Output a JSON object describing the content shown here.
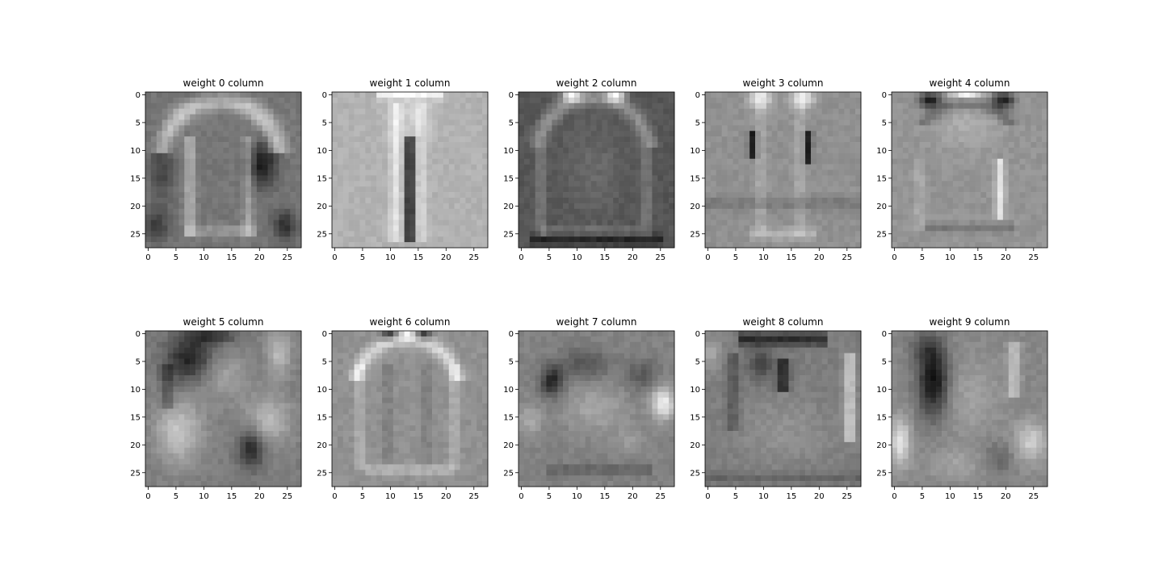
{
  "chart_data": [
    {
      "type": "heatmap",
      "title": "weight 0 column",
      "pattern": "tshirt",
      "colormap": "gray",
      "xlim": [
        0,
        27
      ],
      "ylim": [
        27,
        0
      ],
      "xticks": [
        "0",
        "5",
        "10",
        "15",
        "20",
        "25"
      ],
      "yticks": [
        "0",
        "5",
        "10",
        "15",
        "20",
        "25"
      ]
    },
    {
      "type": "heatmap",
      "title": "weight 1 column",
      "pattern": "trouser",
      "colormap": "gray",
      "xlim": [
        0,
        27
      ],
      "ylim": [
        27,
        0
      ],
      "xticks": [
        "0",
        "5",
        "10",
        "15",
        "20",
        "25"
      ],
      "yticks": [
        "0",
        "5",
        "10",
        "15",
        "20",
        "25"
      ]
    },
    {
      "type": "heatmap",
      "title": "weight 2 column",
      "pattern": "pullover",
      "colormap": "gray",
      "xlim": [
        0,
        27
      ],
      "ylim": [
        27,
        0
      ],
      "xticks": [
        "0",
        "5",
        "10",
        "15",
        "20",
        "25"
      ],
      "yticks": [
        "0",
        "5",
        "10",
        "15",
        "20",
        "25"
      ]
    },
    {
      "type": "heatmap",
      "title": "weight 3 column",
      "pattern": "dress",
      "colormap": "gray",
      "xlim": [
        0,
        27
      ],
      "ylim": [
        27,
        0
      ],
      "xticks": [
        "0",
        "5",
        "10",
        "15",
        "20",
        "25"
      ],
      "yticks": [
        "0",
        "5",
        "10",
        "15",
        "20",
        "25"
      ]
    },
    {
      "type": "heatmap",
      "title": "weight 4 column",
      "pattern": "coat",
      "colormap": "gray",
      "xlim": [
        0,
        27
      ],
      "ylim": [
        27,
        0
      ],
      "xticks": [
        "0",
        "5",
        "10",
        "15",
        "20",
        "25"
      ],
      "yticks": [
        "0",
        "5",
        "10",
        "15",
        "20",
        "25"
      ]
    },
    {
      "type": "heatmap",
      "title": "weight 5 column",
      "pattern": "sandal",
      "colormap": "gray",
      "xlim": [
        0,
        27
      ],
      "ylim": [
        27,
        0
      ],
      "xticks": [
        "0",
        "5",
        "10",
        "15",
        "20",
        "25"
      ],
      "yticks": [
        "0",
        "5",
        "10",
        "15",
        "20",
        "25"
      ]
    },
    {
      "type": "heatmap",
      "title": "weight 6 column",
      "pattern": "shirt",
      "colormap": "gray",
      "xlim": [
        0,
        27
      ],
      "ylim": [
        27,
        0
      ],
      "xticks": [
        "0",
        "5",
        "10",
        "15",
        "20",
        "25"
      ],
      "yticks": [
        "0",
        "5",
        "10",
        "15",
        "20",
        "25"
      ]
    },
    {
      "type": "heatmap",
      "title": "weight 7 column",
      "pattern": "sneaker",
      "colormap": "gray",
      "xlim": [
        0,
        27
      ],
      "ylim": [
        27,
        0
      ],
      "xticks": [
        "0",
        "5",
        "10",
        "15",
        "20",
        "25"
      ],
      "yticks": [
        "0",
        "5",
        "10",
        "15",
        "20",
        "25"
      ]
    },
    {
      "type": "heatmap",
      "title": "weight 8 column",
      "pattern": "bag",
      "colormap": "gray",
      "xlim": [
        0,
        27
      ],
      "ylim": [
        27,
        0
      ],
      "xticks": [
        "0",
        "5",
        "10",
        "15",
        "20",
        "25"
      ],
      "yticks": [
        "0",
        "5",
        "10",
        "15",
        "20",
        "25"
      ]
    },
    {
      "type": "heatmap",
      "title": "weight 9 column",
      "pattern": "boot",
      "colormap": "gray",
      "xlim": [
        0,
        27
      ],
      "ylim": [
        27,
        0
      ],
      "xticks": [
        "0",
        "5",
        "10",
        "15",
        "20",
        "25"
      ],
      "yticks": [
        "0",
        "5",
        "10",
        "15",
        "20",
        "25"
      ]
    }
  ]
}
